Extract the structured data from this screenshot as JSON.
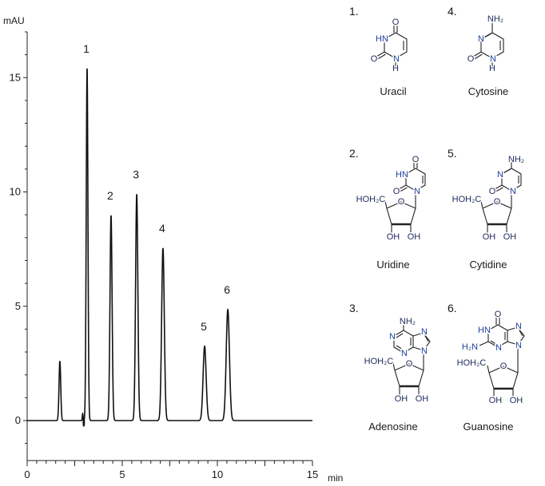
{
  "chart_data": {
    "type": "line",
    "xlabel": "min",
    "ylabel": "mAU",
    "xlim": [
      0,
      15
    ],
    "ylim": [
      -1.75,
      17
    ],
    "xticks": [
      0,
      5,
      10,
      15
    ],
    "yticks": [
      0,
      5,
      10,
      15
    ],
    "grid": false,
    "legend": "none",
    "line_color": "#111111",
    "peaks": [
      {
        "label": "",
        "rt": 1.72,
        "height": 2.6,
        "width": 0.045
      },
      {
        "label": "",
        "rt": 2.92,
        "height": 0.3,
        "width": 0.02
      },
      {
        "label": "1",
        "rt": 3.15,
        "height": 15.4,
        "width": 0.045
      },
      {
        "label": "2",
        "rt": 4.41,
        "height": 8.97,
        "width": 0.055
      },
      {
        "label": "3",
        "rt": 5.76,
        "height": 9.9,
        "width": 0.06
      },
      {
        "label": "4",
        "rt": 7.14,
        "height": 7.54,
        "width": 0.07
      },
      {
        "label": "5",
        "rt": 9.33,
        "height": 3.25,
        "width": 0.08
      },
      {
        "label": "6",
        "rt": 10.55,
        "height": 4.85,
        "width": 0.085
      }
    ]
  },
  "compounds": [
    {
      "number": "1.",
      "name": "Uracil",
      "atoms": {
        "o4": "O",
        "n3": "HN",
        "o2": "O",
        "n1": "N",
        "h1": "H"
      }
    },
    {
      "number": "4.",
      "name": "Cytosine",
      "atoms": {
        "nh2": "NH₂",
        "n3": "N",
        "o2": "O",
        "n1": "N",
        "h1": "H"
      }
    },
    {
      "number": "2.",
      "name": "Uridine",
      "atoms": {
        "o4": "O",
        "n3": "HN",
        "o2": "O",
        "n1": "N",
        "ch2": "HOH₂C",
        "ro": "O",
        "oh3": "OH",
        "oh2": "OH"
      }
    },
    {
      "number": "5.",
      "name": "Cytidine",
      "atoms": {
        "nh2": "NH₂",
        "n3": "N",
        "o2": "O",
        "n1": "N",
        "ch2": "HOH₂C",
        "ro": "O",
        "oh3": "OH",
        "oh2": "OH"
      }
    },
    {
      "number": "3.",
      "name": "Adenosine",
      "atoms": {
        "nh2": "NH₂",
        "n1": "N",
        "n3": "N",
        "n7": "N",
        "n9": "N",
        "ch2": "HOH₂C",
        "ro": "O",
        "oh3": "OH",
        "oh2": "OH"
      }
    },
    {
      "number": "6.",
      "name": "Guanosine",
      "atoms": {
        "o6": "O",
        "n1": "HN",
        "nh2": "H₂N",
        "n3": "N",
        "n7": "N",
        "n9": "N",
        "ch2": "HOH₂C",
        "ro": "O",
        "oh3": "OH",
        "oh2": "OH"
      }
    }
  ]
}
